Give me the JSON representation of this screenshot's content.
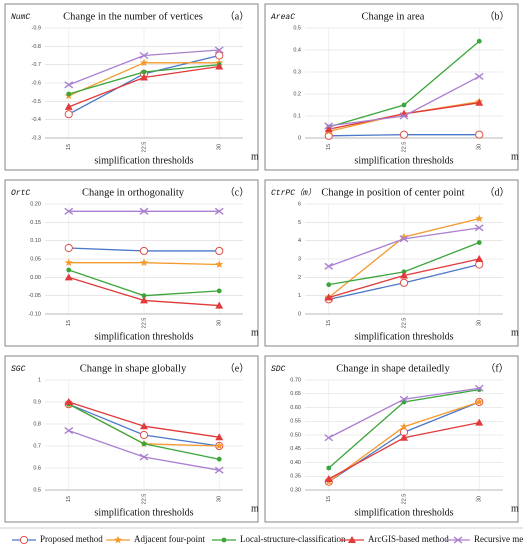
{
  "legend": [
    {
      "name": "Proposed method",
      "color": "#4a78c8",
      "marker_color": "#e0504a",
      "marker": "circle-open"
    },
    {
      "name": "Adjacent four-point",
      "color": "#f39a2c",
      "marker_color": "#f39a2c",
      "marker": "star"
    },
    {
      "name": "Local-structure-classification",
      "color": "#3aa63a",
      "marker_color": "#3aa63a",
      "marker": "circle"
    },
    {
      "name": "ArcGIS-based method",
      "color": "#e03a3a",
      "marker_color": "#e03a3a",
      "marker": "triangle"
    },
    {
      "name": "Recursive method",
      "color": "#a97fd0",
      "marker_color": "#a97fd0",
      "marker": "x"
    }
  ],
  "chart_data": [
    {
      "type": "line",
      "title": "Change in the number of vertices",
      "panel": "（a）",
      "ylabel": "NumC",
      "xlabel": "simplification thresholds",
      "xunit": "m",
      "categories": [
        "15",
        "22.5",
        "30"
      ],
      "ylim": [
        -0.3,
        -0.9
      ],
      "yticks": [
        -0.9,
        -0.8,
        -0.7,
        -0.6,
        -0.5,
        -0.4,
        -0.3
      ],
      "grid": true,
      "series": [
        {
          "values": [
            -0.43,
            -0.65,
            -0.75
          ]
        },
        {
          "values": [
            -0.53,
            -0.71,
            -0.71
          ]
        },
        {
          "values": [
            -0.54,
            -0.66,
            -0.7
          ]
        },
        {
          "values": [
            -0.47,
            -0.63,
            -0.69
          ]
        },
        {
          "values": [
            -0.59,
            -0.75,
            -0.78
          ]
        }
      ]
    },
    {
      "type": "line",
      "title": "Change in area",
      "panel": "（b）",
      "ylabel": "AreaC",
      "xlabel": "simplification thresholds",
      "xunit": "m",
      "categories": [
        "15",
        "22.5",
        "30"
      ],
      "ylim": [
        0,
        0.5
      ],
      "yticks": [
        0,
        0.1,
        0.2,
        0.3,
        0.4,
        0.5
      ],
      "grid": true,
      "series": [
        {
          "values": [
            0.01,
            0.015,
            0.015
          ]
        },
        {
          "values": [
            0.03,
            0.11,
            0.165
          ]
        },
        {
          "values": [
            0.05,
            0.15,
            0.44
          ]
        },
        {
          "values": [
            0.04,
            0.11,
            0.16
          ]
        },
        {
          "values": [
            0.055,
            0.1,
            0.28
          ]
        }
      ]
    },
    {
      "type": "line",
      "title": "Change in orthogonality",
      "panel": "（c）",
      "ylabel": "OrtC",
      "xlabel": "simplification thresholds",
      "xunit": "m",
      "categories": [
        "15",
        "22.5",
        "30"
      ],
      "ylim": [
        -0.1,
        0.2
      ],
      "yticks": [
        {
          "value": 0.2,
          "label": "0.20"
        },
        {
          "value": 0.15,
          "label": "0.15"
        },
        {
          "value": 0.1,
          "label": "0.10"
        },
        {
          "value": 0.05,
          "label": "0.05"
        },
        {
          "value": 0,
          "label": "0.00"
        },
        {
          "value": -0.05,
          "label": "-0.05"
        },
        {
          "value": -0.1,
          "label": "-0.10"
        }
      ],
      "grid": true,
      "series": [
        {
          "values": [
            0.08,
            0.072,
            0.072
          ]
        },
        {
          "values": [
            0.04,
            0.04,
            0.035
          ]
        },
        {
          "values": [
            0.02,
            -0.05,
            -0.037
          ]
        },
        {
          "values": [
            0,
            -0.063,
            -0.077
          ]
        },
        {
          "values": [
            0.18,
            0.18,
            0.18
          ]
        }
      ]
    },
    {
      "type": "line",
      "title": "Change in position of center point",
      "panel": "（d）",
      "ylabel": "CtrPC（m）",
      "xlabel": "simplification thresholds",
      "xunit": "m",
      "categories": [
        "15",
        "22.5",
        "30"
      ],
      "ylim": [
        0,
        6
      ],
      "yticks": [
        0,
        1,
        2,
        3,
        4,
        5,
        6
      ],
      "grid": true,
      "series": [
        {
          "values": [
            0.8,
            1.7,
            2.7
          ]
        },
        {
          "values": [
            0.9,
            4.2,
            5.2
          ]
        },
        {
          "values": [
            1.6,
            2.3,
            3.9
          ]
        },
        {
          "values": [
            0.9,
            2.1,
            3.0
          ]
        },
        {
          "values": [
            2.6,
            4.1,
            4.7
          ]
        }
      ]
    },
    {
      "type": "line",
      "title": "Change in shape globally",
      "panel": "（e）",
      "ylabel": "SGC",
      "xlabel": "simplification thresholds",
      "xunit": "m",
      "categories": [
        "15",
        "22.5",
        "30"
      ],
      "ylim": [
        0.5,
        1
      ],
      "yticks": [
        0.5,
        0.6,
        0.7,
        0.8,
        0.9,
        1
      ],
      "grid": true,
      "series": [
        {
          "values": [
            0.89,
            0.75,
            0.7
          ]
        },
        {
          "values": [
            0.89,
            0.71,
            0.7
          ]
        },
        {
          "values": [
            0.89,
            0.71,
            0.64
          ]
        },
        {
          "values": [
            0.9,
            0.79,
            0.74
          ]
        },
        {
          "values": [
            0.77,
            0.65,
            0.59
          ]
        }
      ]
    },
    {
      "type": "line",
      "title": "Change in shape detailedly",
      "panel": "（f）",
      "ylabel": "SDC",
      "xlabel": "simplification thresholds",
      "xunit": "m",
      "categories": [
        "15",
        "22.5",
        "30"
      ],
      "ylim": [
        0.3,
        0.7
      ],
      "yticks": [
        {
          "value": 0.7,
          "label": "0.70"
        },
        {
          "value": 0.65,
          "label": "0.65"
        },
        {
          "value": 0.6,
          "label": "0.60"
        },
        {
          "value": 0.55,
          "label": "0.55"
        },
        {
          "value": 0.5,
          "label": "0.50"
        },
        {
          "value": 0.45,
          "label": "0.45"
        },
        {
          "value": 0.4,
          "label": "0.40"
        },
        {
          "value": 0.35,
          "label": "0.35"
        },
        {
          "value": 0.3,
          "label": "0.30"
        }
      ],
      "grid": true,
      "series": [
        {
          "values": [
            0.33,
            0.51,
            0.62
          ]
        },
        {
          "values": [
            0.33,
            0.53,
            0.62
          ]
        },
        {
          "values": [
            0.38,
            0.62,
            0.665
          ]
        },
        {
          "values": [
            0.34,
            0.49,
            0.545
          ]
        },
        {
          "values": [
            0.49,
            0.63,
            0.67
          ]
        }
      ]
    }
  ]
}
